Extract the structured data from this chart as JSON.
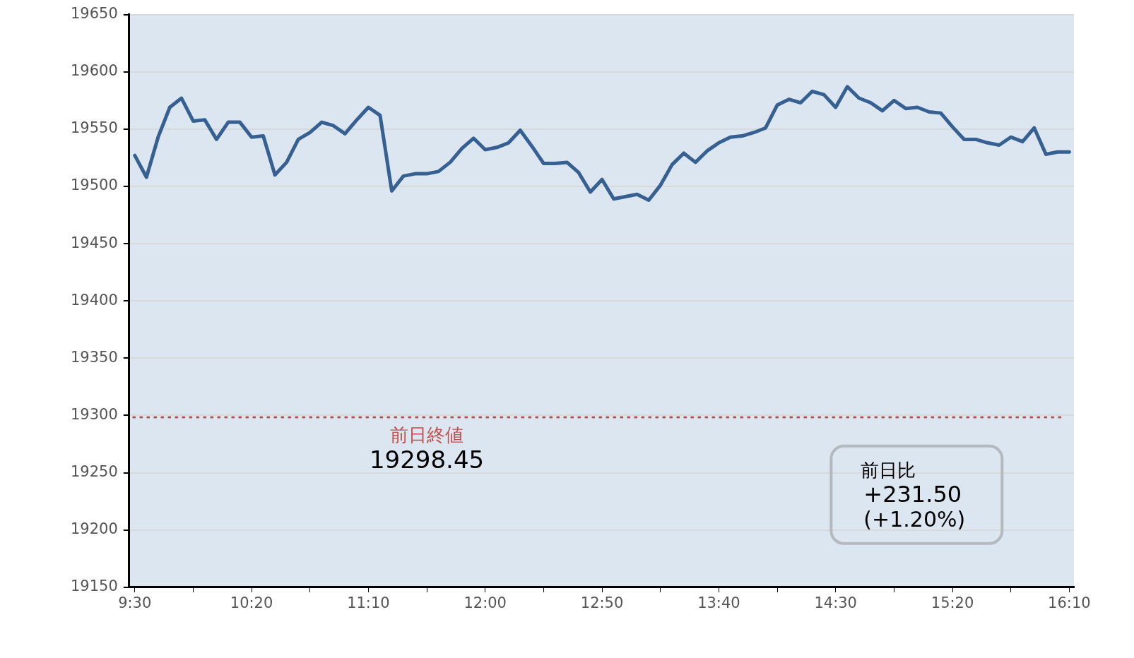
{
  "chart_data": {
    "type": "line",
    "color": "#366092",
    "line_style": "solid",
    "marker": "none",
    "legend": false,
    "grid": "y",
    "x": [
      9.5,
      9.583333,
      9.666667,
      9.75,
      9.833333,
      9.916667,
      10,
      10.083333,
      10.166667,
      10.25,
      10.333333,
      10.416667,
      10.5,
      10.583333,
      10.666667,
      10.75,
      10.833333,
      10.916667,
      11,
      11.083333,
      11.166667,
      11.25,
      11.333333,
      11.416667,
      11.5,
      11.583333,
      11.666667,
      11.75,
      11.833333,
      11.916667,
      12,
      12.083333,
      12.166667,
      12.25,
      12.333333,
      12.416667,
      12.5,
      12.583333,
      12.666667,
      12.75,
      12.833333,
      12.916667,
      13,
      13.083333,
      13.166667,
      13.25,
      13.333333,
      13.416667,
      13.5,
      13.583333,
      13.666667,
      13.75,
      13.833333,
      13.916667,
      14,
      14.083333,
      14.166667,
      14.25,
      14.333333,
      14.416667,
      14.5,
      14.583333,
      14.666667,
      14.75,
      14.833333,
      14.916667,
      15,
      15.083333,
      15.166667,
      15.25,
      15.333333,
      15.416667,
      15.5,
      15.583333,
      15.666667,
      15.75,
      15.833333,
      15.916667,
      16,
      16.083333,
      16.166667
    ],
    "values": [
      19527,
      19508,
      19543,
      19569,
      19577,
      19557,
      19558,
      19541,
      19556,
      19556,
      19543,
      19544,
      19510,
      19521,
      19541,
      19547,
      19556,
      19553,
      19546,
      19558,
      19569,
      19562,
      19496,
      19509,
      19511,
      19511,
      19513,
      19521,
      19533,
      19542,
      19532,
      19534,
      19538,
      19549,
      19535,
      19520,
      19520,
      19521,
      19512,
      19495,
      19506,
      19489,
      19491,
      19493,
      19488,
      19501,
      19519,
      19529,
      19521,
      19531,
      19538,
      19543,
      19544,
      19547,
      19551,
      19571,
      19576,
      19573,
      19583,
      19580,
      19569,
      19587,
      19577,
      19573,
      19566,
      19575,
      19568,
      19569,
      19565,
      19564,
      19552,
      19541,
      19541,
      19538,
      19536,
      19543,
      19539,
      19551,
      19528,
      19530,
      19530
    ],
    "xlim": [
      9.46,
      16.2
    ],
    "xticks": [
      {
        "value": 9.5,
        "label": "9:30"
      },
      {
        "value": 9.916667,
        "label": null
      },
      {
        "value": 10.333333,
        "label": "10:20"
      },
      {
        "value": 10.75,
        "label": null
      },
      {
        "value": 11.166667,
        "label": "11:10"
      },
      {
        "value": 11.583333,
        "label": null
      },
      {
        "value": 12,
        "label": "12:00"
      },
      {
        "value": 12.416667,
        "label": null
      },
      {
        "value": 12.833333,
        "label": "12:50"
      },
      {
        "value": 13.25,
        "label": null
      },
      {
        "value": 13.666667,
        "label": "13:40"
      },
      {
        "value": 14.083333,
        "label": null
      },
      {
        "value": 14.5,
        "label": "14:30"
      },
      {
        "value": 14.916667,
        "label": null
      },
      {
        "value": 15.333333,
        "label": "15:20"
      },
      {
        "value": 15.75,
        "label": null
      },
      {
        "value": 16.166667,
        "label": "16:10"
      }
    ],
    "ylim": [
      19150,
      19650
    ],
    "yticks": [
      19150,
      19200,
      19250,
      19300,
      19350,
      19400,
      19450,
      19500,
      19550,
      19600,
      19650
    ],
    "ref_lines": [
      {
        "axis": "y",
        "value": 19298.45,
        "label": "前日終値",
        "color": "#c0504d",
        "line_style": "dotted"
      }
    ],
    "annotations": [
      {
        "text": "19298.45",
        "y": 19298.45
      },
      "前日比",
      "+231.50",
      "(+1.20%)"
    ]
  }
}
